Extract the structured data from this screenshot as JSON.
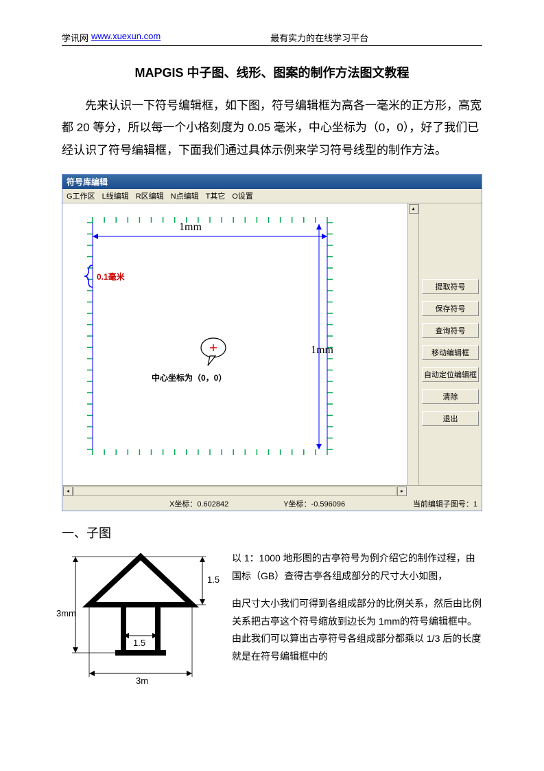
{
  "header": {
    "site_label": "学讯网",
    "site_url": "www.xuexun.com",
    "tagline": "最有实力的在线学习平台"
  },
  "title": "MAPGIS 中子图、线形、图案的制作方法图文教程",
  "intro": "先来认识一下符号编辑框，如下图，符号编辑框为高各一毫米的正方形，高宽都 20 等分，所以每一个小格刻度为 0.05 毫米，中心坐标为（0，0），好了我们已经认识了符号编辑框，下面我们通过具体示例来学习符号线型的制作方法。",
  "editor": {
    "window_title": "符号库编辑",
    "menu": [
      "G工作区",
      "L线编辑",
      "R区编辑",
      "N点编辑",
      "T其它",
      "O设置"
    ],
    "top_dim": "1mm",
    "right_dim": "1mm",
    "tick_label": "0.1毫米",
    "center_label": "中心坐标为（0，0）",
    "side_buttons": [
      "提取符号",
      "保存符号",
      "查询符号",
      "移动编辑框",
      "自动定位编辑框",
      "清除",
      "退出"
    ],
    "status_x": "X坐标：0.602842",
    "status_y": "Y坐标：-0.596096",
    "status_id": "当前编辑子图号：1",
    "colors": {
      "titlebar_top": "#3a6ea5",
      "tick": "#00a651",
      "dim": "#0000ff",
      "tick_label": "#cc0000",
      "panel_bg": "#ece9d8"
    },
    "grid": {
      "divisions": 20
    }
  },
  "section1": {
    "heading": "一、子图",
    "para1": "以 1：1000 地形图的古亭符号为例介绍它的制作过程，由国标（GB）查得古亭各组成部分的尺寸大小如图，",
    "para2": "由尺寸大小我们可得到各组成部分的比例关系，然后由比例关系把古亭这个符号缩放到边长为 1mm的符号编辑框中。由此我们可以算出古亭符号各组成部分都乘以 1/3 后的长度就是在符号编辑框中的",
    "pavilion": {
      "total_w_label": "3m",
      "total_h_label": "3mm",
      "roof_h_label": "1.5",
      "post_gap_label": "1.5",
      "stroke": "#000000",
      "stroke_width": 8
    }
  }
}
